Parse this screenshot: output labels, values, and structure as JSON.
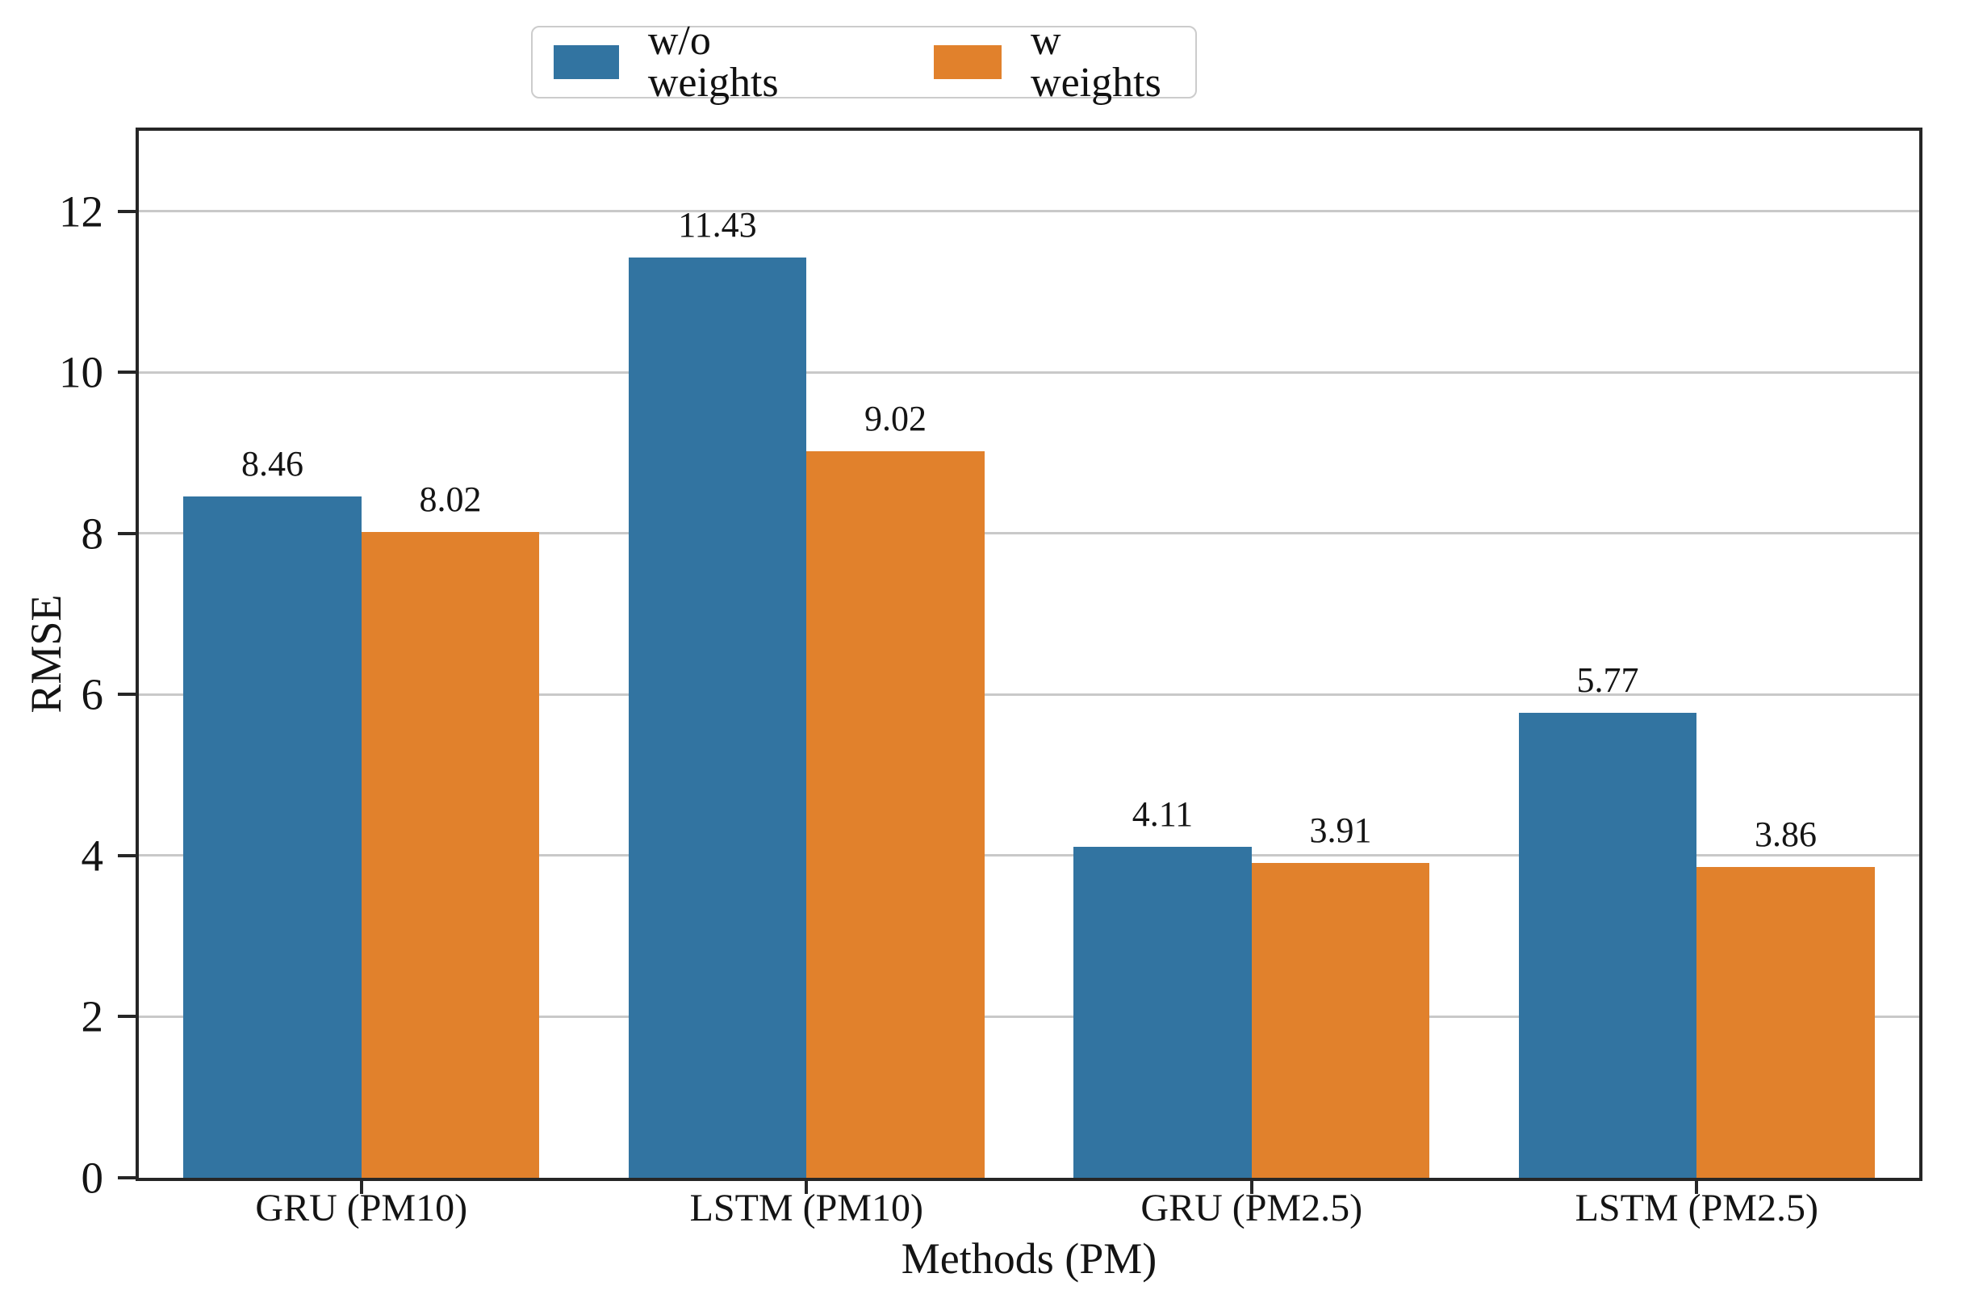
{
  "chart_data": {
    "type": "bar",
    "title": "",
    "xlabel": "Methods (PM)",
    "ylabel": "RMSE",
    "categories": [
      "GRU (PM10)",
      "LSTM (PM10)",
      "GRU (PM2.5)",
      "LSTM (PM2.5)"
    ],
    "series": [
      {
        "name": "w/o weights",
        "color": "#3274A1",
        "values": [
          8.46,
          11.43,
          4.11,
          5.77
        ],
        "labels": [
          "8.46",
          "11.43",
          "4.11",
          "5.77"
        ]
      },
      {
        "name": "w weights",
        "color": "#E1812C",
        "values": [
          8.02,
          9.02,
          3.91,
          3.86
        ],
        "labels": [
          "8.02",
          "9.02",
          "3.91",
          "3.86"
        ]
      }
    ],
    "ylim": [
      0,
      13
    ],
    "yticks": [
      0,
      2,
      4,
      6,
      8,
      10,
      12
    ],
    "grid": true,
    "legend_position": "upper center, outside plot",
    "bar_width_fraction": 0.4
  }
}
